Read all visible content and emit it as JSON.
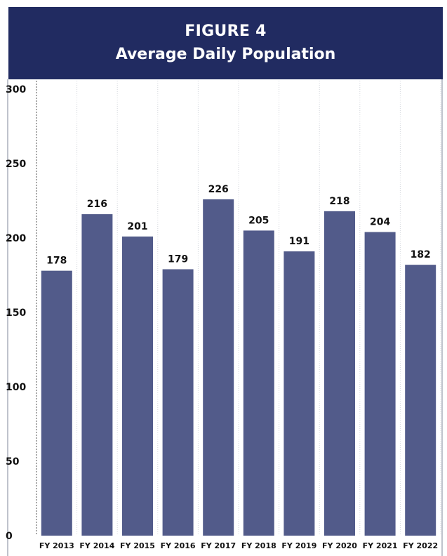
{
  "header": {
    "figure_number": "FIGURE 4",
    "title": "Average Daily Population",
    "background": "#212b61"
  },
  "chart_data": {
    "type": "bar",
    "title": "Average Daily Population",
    "categories": [
      "FY 2013",
      "FY 2014",
      "FY 2015",
      "FY 2016",
      "FY 2017",
      "FY 2018",
      "FY 2019",
      "FY 2020",
      "FY 2021",
      "FY 2022"
    ],
    "values": [
      178,
      216,
      201,
      179,
      226,
      205,
      191,
      218,
      204,
      182
    ],
    "data_labels": [
      "178",
      "216",
      "201",
      "179",
      "226",
      "205",
      "191",
      "218",
      "204",
      "182"
    ],
    "xlabel": "",
    "ylabel": "",
    "ylim": [
      0,
      300
    ],
    "yticks": [
      0,
      50,
      100,
      150,
      200,
      250,
      300
    ],
    "grid": "vertical dotted",
    "legend": "none",
    "bar_color": "#525b8a"
  }
}
